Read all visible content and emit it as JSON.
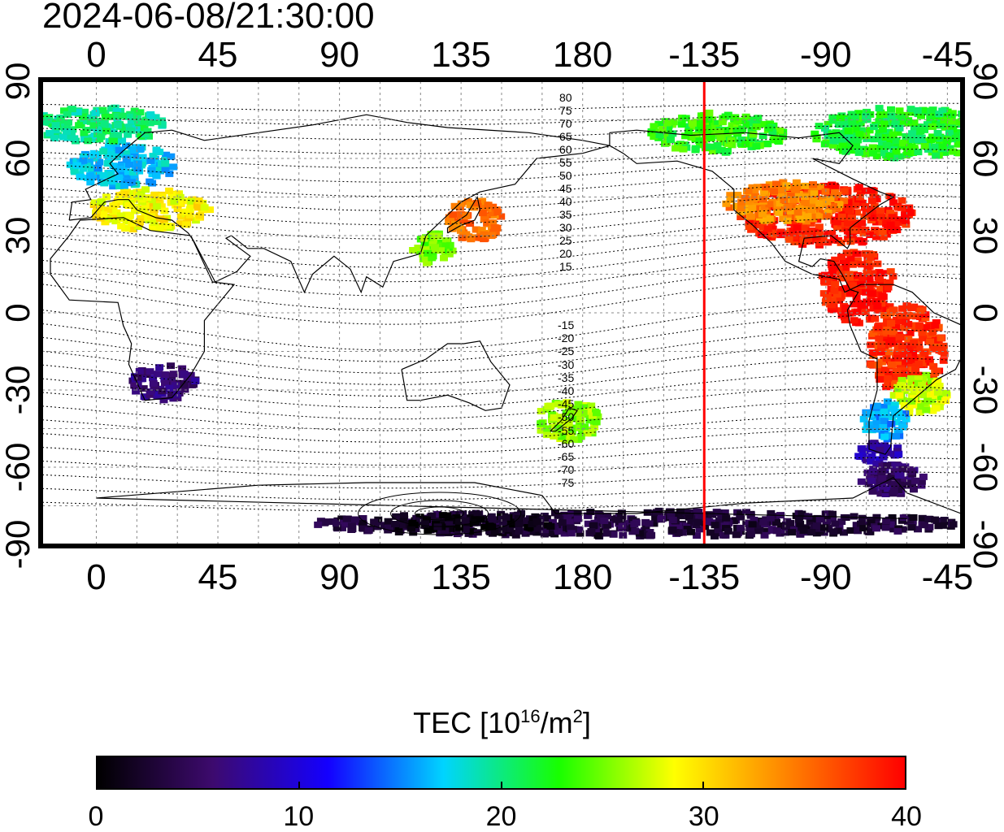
{
  "timestamp": "2024-06-08/21:30:00",
  "longitude_ticks_top": [
    "0",
    "45",
    "90",
    "135",
    "180",
    "-135",
    "-90",
    "-45"
  ],
  "longitude_ticks_bottom": [
    "0",
    "45",
    "90",
    "135",
    "180",
    "-135",
    "-90",
    "-45"
  ],
  "latitude_ticks_left": [
    "90",
    "60",
    "30",
    "0",
    "-30",
    "-60",
    "-90"
  ],
  "latitude_ticks_right": [
    "90",
    "60",
    "30",
    "0",
    "-30",
    "-60",
    "-90"
  ],
  "contour_labels_north": [
    "80",
    "75",
    "70",
    "65",
    "60",
    "55",
    "50",
    "45",
    "40",
    "35",
    "30",
    "25",
    "20",
    "15"
  ],
  "contour_labels_south": [
    "-15",
    "-20",
    "-25",
    "-30",
    "-35",
    "-40",
    "-45",
    "-50",
    "-55",
    "-60",
    "-65",
    "-70",
    "-75"
  ],
  "colorbar": {
    "title_prefix": "TEC  [10",
    "title_sup1": "16",
    "title_mid": "/m",
    "title_sup2": "2",
    "title_suffix": "]",
    "ticks": [
      "0",
      "10",
      "20",
      "30",
      "40"
    ],
    "min": 0,
    "max": 40,
    "colors": [
      "#000000",
      "#3d0a6e",
      "#1400ff",
      "#00d4ff",
      "#18ff00",
      "#ffff00",
      "#ff8000",
      "#ff0000"
    ]
  },
  "terminator_longitude": -135,
  "terminator_color": "#ff0000",
  "map_extent": {
    "lon_min": -20,
    "lon_max": 320,
    "lat_min": -90,
    "lat_max": 90
  },
  "tec_regions": [
    {
      "lon": 270,
      "lat": 38,
      "rlon": 32,
      "rlat": 12,
      "tec": 39
    },
    {
      "lon": 255,
      "lat": 43,
      "rlon": 22,
      "rlat": 8,
      "tec": 34
    },
    {
      "lon": 300,
      "lat": 70,
      "rlon": 35,
      "rlat": 10,
      "tec": 22
    },
    {
      "lon": 230,
      "lat": 70,
      "rlon": 25,
      "rlat": 8,
      "tec": 23
    },
    {
      "lon": 282,
      "lat": 10,
      "rlon": 14,
      "rlat": 14,
      "tec": 39
    },
    {
      "lon": 300,
      "lat": -15,
      "rlon": 14,
      "rlat": 18,
      "tec": 38
    },
    {
      "lon": 305,
      "lat": -32,
      "rlon": 10,
      "rlat": 8,
      "tec": 27
    },
    {
      "lon": 292,
      "lat": -42,
      "rlon": 8,
      "rlat": 8,
      "tec": 16
    },
    {
      "lon": 290,
      "lat": -55,
      "rlon": 8,
      "rlat": 5,
      "tec": 8
    },
    {
      "lon": 295,
      "lat": -65,
      "rlon": 12,
      "rlat": 6,
      "tec": 5
    },
    {
      "lon": 140,
      "lat": 36,
      "rlon": 10,
      "rlat": 8,
      "tec": 35
    },
    {
      "lon": 125,
      "lat": 25,
      "rlon": 8,
      "rlat": 6,
      "tec": 25
    },
    {
      "lon": 175,
      "lat": -42,
      "rlon": 12,
      "rlat": 8,
      "tec": 26
    },
    {
      "lon": 20,
      "lat": 40,
      "rlon": 22,
      "rlat": 8,
      "tec": 29
    },
    {
      "lon": 10,
      "lat": 57,
      "rlon": 20,
      "rlat": 8,
      "tec": 17
    },
    {
      "lon": 0,
      "lat": 73,
      "rlon": 25,
      "rlat": 7,
      "tec": 20
    },
    {
      "lon": 25,
      "lat": -27,
      "rlon": 12,
      "rlat": 7,
      "tec": 6
    },
    {
      "lon": 200,
      "lat": -82,
      "rlon": 120,
      "rlat": 5,
      "tec": 3
    },
    {
      "lon": 140,
      "lat": -82,
      "rlon": 30,
      "rlat": 4,
      "tec": 1
    }
  ]
}
